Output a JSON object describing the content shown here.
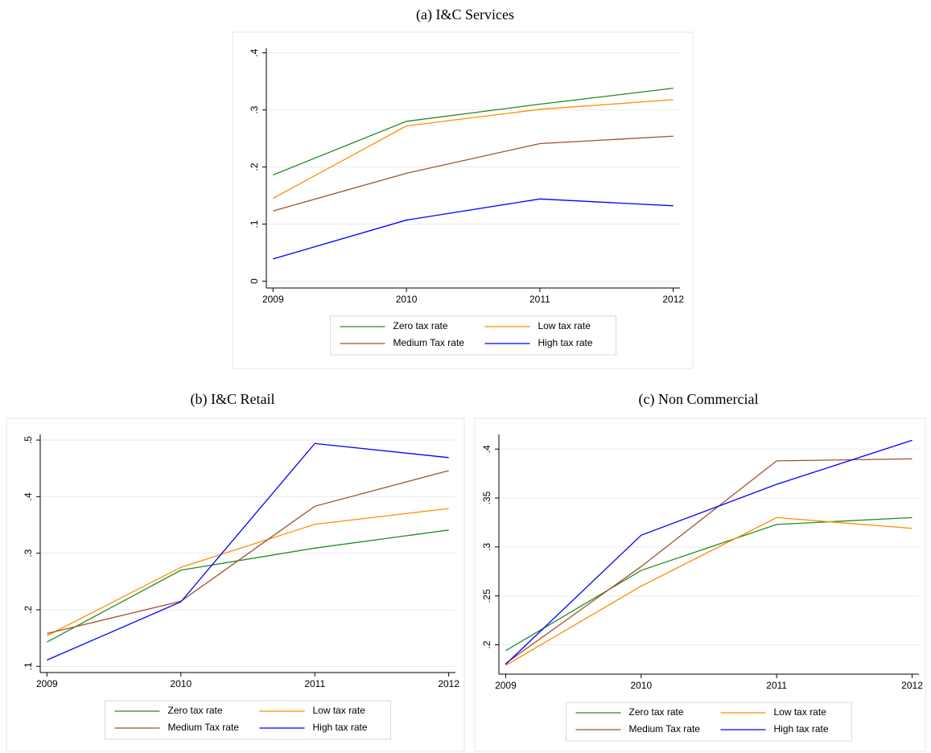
{
  "chart_data": [
    {
      "type": "line",
      "title": "(a) I&C Services",
      "x": [
        2009,
        2010,
        2011,
        2012
      ],
      "xlim": [
        2008.95,
        2012.05
      ],
      "xticks": [
        2009,
        2010,
        2011,
        2012
      ],
      "ylim": [
        -0.012,
        0.408
      ],
      "yticks": [
        0,
        {
          "value": 0.1,
          "label": ".1"
        },
        {
          "value": 0.2,
          "label": ".2"
        },
        {
          "value": 0.3,
          "label": ".3"
        },
        {
          "value": 0.4,
          "label": ".4"
        }
      ],
      "grid": true,
      "legend": "bottom",
      "series": [
        {
          "name": "Zero tax rate",
          "color": "#228b22",
          "values": [
            0.186,
            0.28,
            0.31,
            0.338
          ]
        },
        {
          "name": "Low tax rate",
          "color": "#ff8c00",
          "values": [
            0.145,
            0.272,
            0.301,
            0.318
          ]
        },
        {
          "name": "Medium Tax rate",
          "color": "#a0522d",
          "values": [
            0.123,
            0.189,
            0.241,
            0.254
          ]
        },
        {
          "name": "High tax rate",
          "color": "#0000ff",
          "values": [
            0.039,
            0.107,
            0.144,
            0.132
          ]
        }
      ]
    },
    {
      "type": "line",
      "title": "(b) I&C Retail",
      "x": [
        2009,
        2010,
        2011,
        2012
      ],
      "xlim": [
        2008.95,
        2012.05
      ],
      "xticks": [
        2009,
        2010,
        2011,
        2012
      ],
      "ylim": [
        0.089,
        0.51
      ],
      "yticks": [
        {
          "value": 0.1,
          "label": ".1"
        },
        {
          "value": 0.2,
          "label": ".2"
        },
        {
          "value": 0.3,
          "label": ".3"
        },
        {
          "value": 0.4,
          "label": ".4"
        },
        {
          "value": 0.5,
          "label": ".5"
        }
      ],
      "grid": true,
      "legend": "bottom",
      "series": [
        {
          "name": "Zero tax rate",
          "color": "#228b22",
          "values": [
            0.143,
            0.27,
            0.309,
            0.341
          ]
        },
        {
          "name": "Low tax rate",
          "color": "#ff8c00",
          "values": [
            0.154,
            0.275,
            0.351,
            0.379
          ]
        },
        {
          "name": "Medium Tax rate",
          "color": "#a0522d",
          "values": [
            0.158,
            0.215,
            0.383,
            0.446
          ]
        },
        {
          "name": "High tax rate",
          "color": "#0000ff",
          "values": [
            0.111,
            0.214,
            0.494,
            0.469
          ]
        }
      ]
    },
    {
      "type": "line",
      "title": "(c) Non Commercial",
      "x": [
        2009,
        2010,
        2011,
        2012
      ],
      "xlim": [
        2008.95,
        2012.05
      ],
      "xticks": [
        2009,
        2010,
        2011,
        2012
      ],
      "ylim": [
        0.17,
        0.415
      ],
      "yticks": [
        {
          "value": 0.2,
          "label": ".2"
        },
        {
          "value": 0.25,
          "label": ".25"
        },
        {
          "value": 0.3,
          "label": ".3"
        },
        {
          "value": 0.35,
          "label": ".35"
        },
        {
          "value": 0.4,
          "label": ".4"
        }
      ],
      "grid": true,
      "legend": "bottom",
      "series": [
        {
          "name": "Zero tax rate",
          "color": "#228b22",
          "values": [
            0.194,
            0.276,
            0.323,
            0.33
          ]
        },
        {
          "name": "Low tax rate",
          "color": "#ff8c00",
          "values": [
            0.179,
            0.26,
            0.33,
            0.319
          ]
        },
        {
          "name": "Medium Tax rate",
          "color": "#a0522d",
          "values": [
            0.181,
            0.28,
            0.388,
            0.39
          ]
        },
        {
          "name": "High tax rate",
          "color": "#0000ff",
          "values": [
            0.18,
            0.312,
            0.364,
            0.409
          ]
        }
      ]
    }
  ]
}
